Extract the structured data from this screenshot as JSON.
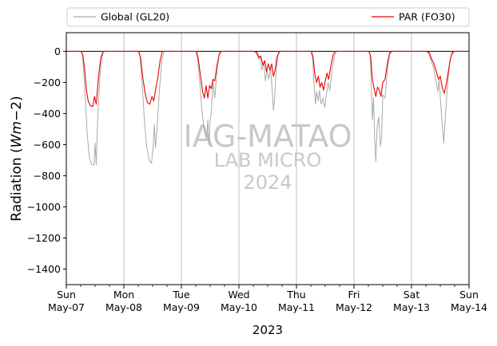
{
  "chart_data": {
    "type": "line",
    "ylabel": "Radiation ($Wm{-}2$)",
    "ylabel_parts": {
      "main": "Radiation (",
      "italic": "Wm",
      "tail": "−2)"
    },
    "xlabel": "2023",
    "ylim": [
      -1500,
      120
    ],
    "xlim": [
      0,
      7
    ],
    "grid": "vertical",
    "legend_placement": "top",
    "yticks": [
      0,
      -200,
      -400,
      -600,
      -800,
      -1000,
      -1200,
      -1400
    ],
    "ytick_labels": [
      "0",
      "−200",
      "−400",
      "−600",
      "−800",
      "−1000",
      "−1200",
      "−1400"
    ],
    "xticks": [
      {
        "day": "Sun",
        "date": "May-07"
      },
      {
        "day": "Mon",
        "date": "May-08"
      },
      {
        "day": "Tue",
        "date": "May-09"
      },
      {
        "day": "Wed",
        "date": "May-10"
      },
      {
        "day": "Thu",
        "date": "May-11"
      },
      {
        "day": "Fri",
        "date": "May-12"
      },
      {
        "day": "Sat",
        "date": "May-13"
      },
      {
        "day": "Sun",
        "date": "May-14"
      }
    ],
    "watermark": {
      "line1": "IAG-MATAO",
      "line2": "LAB MICRO",
      "line3": "2024"
    },
    "series": [
      {
        "name": "Global (GL20)",
        "color": "#aaaaaa",
        "points": [
          [
            0,
            0
          ],
          [
            0.25,
            0
          ],
          [
            0.28,
            -20
          ],
          [
            0.3,
            -120
          ],
          [
            0.33,
            -300
          ],
          [
            0.36,
            -520
          ],
          [
            0.4,
            -680
          ],
          [
            0.44,
            -730
          ],
          [
            0.48,
            -730
          ],
          [
            0.5,
            -590
          ],
          [
            0.52,
            -730
          ],
          [
            0.54,
            -480
          ],
          [
            0.57,
            -250
          ],
          [
            0.6,
            -90
          ],
          [
            0.64,
            -5
          ],
          [
            0.7,
            0
          ],
          [
            1.25,
            0
          ],
          [
            1.28,
            -30
          ],
          [
            1.32,
            -220
          ],
          [
            1.36,
            -460
          ],
          [
            1.4,
            -620
          ],
          [
            1.44,
            -700
          ],
          [
            1.48,
            -720
          ],
          [
            1.51,
            -610
          ],
          [
            1.53,
            -470
          ],
          [
            1.55,
            -620
          ],
          [
            1.58,
            -480
          ],
          [
            1.62,
            -240
          ],
          [
            1.66,
            -60
          ],
          [
            1.7,
            0
          ],
          [
            2.25,
            0
          ],
          [
            2.28,
            -40
          ],
          [
            2.32,
            -200
          ],
          [
            2.36,
            -390
          ],
          [
            2.4,
            -520
          ],
          [
            2.44,
            -560
          ],
          [
            2.46,
            -440
          ],
          [
            2.48,
            -600
          ],
          [
            2.5,
            -440
          ],
          [
            2.52,
            -390
          ],
          [
            2.55,
            -200
          ],
          [
            2.58,
            -300
          ],
          [
            2.62,
            -120
          ],
          [
            2.66,
            -20
          ],
          [
            2.7,
            0
          ],
          [
            3.25,
            0
          ],
          [
            3.3,
            -10
          ],
          [
            3.34,
            -50
          ],
          [
            3.37,
            -40
          ],
          [
            3.4,
            -120
          ],
          [
            3.43,
            -70
          ],
          [
            3.46,
            -190
          ],
          [
            3.49,
            -120
          ],
          [
            3.52,
            -180
          ],
          [
            3.55,
            -100
          ],
          [
            3.58,
            -260
          ],
          [
            3.6,
            -380
          ],
          [
            3.62,
            -300
          ],
          [
            3.65,
            -120
          ],
          [
            3.68,
            -20
          ],
          [
            3.72,
            0
          ],
          [
            4.25,
            0
          ],
          [
            4.28,
            -40
          ],
          [
            4.3,
            -180
          ],
          [
            4.33,
            -340
          ],
          [
            4.35,
            -260
          ],
          [
            4.38,
            -320
          ],
          [
            4.4,
            -250
          ],
          [
            4.43,
            -340
          ],
          [
            4.46,
            -300
          ],
          [
            4.49,
            -360
          ],
          [
            4.52,
            -280
          ],
          [
            4.55,
            -200
          ],
          [
            4.58,
            -250
          ],
          [
            4.62,
            -120
          ],
          [
            4.66,
            -30
          ],
          [
            4.7,
            0
          ],
          [
            5.25,
            0
          ],
          [
            5.28,
            -20
          ],
          [
            5.3,
            -200
          ],
          [
            5.32,
            -440
          ],
          [
            5.34,
            -300
          ],
          [
            5.36,
            -560
          ],
          [
            5.38,
            -710
          ],
          [
            5.4,
            -500
          ],
          [
            5.43,
            -420
          ],
          [
            5.46,
            -610
          ],
          [
            5.48,
            -560
          ],
          [
            5.5,
            -280
          ],
          [
            5.54,
            -300
          ],
          [
            5.58,
            -120
          ],
          [
            5.62,
            -20
          ],
          [
            5.66,
            0
          ],
          [
            6.25,
            0
          ],
          [
            6.3,
            -10
          ],
          [
            6.34,
            -60
          ],
          [
            6.38,
            -100
          ],
          [
            6.42,
            -180
          ],
          [
            6.46,
            -260
          ],
          [
            6.48,
            -180
          ],
          [
            6.52,
            -400
          ],
          [
            6.56,
            -590
          ],
          [
            6.58,
            -470
          ],
          [
            6.62,
            -250
          ],
          [
            6.66,
            -80
          ],
          [
            6.7,
            -10
          ],
          [
            6.75,
            0
          ],
          [
            7,
            0
          ]
        ]
      },
      {
        "name": "PAR (FO30)",
        "color": "#ee0000",
        "points": [
          [
            0,
            0
          ],
          [
            0.26,
            0
          ],
          [
            0.29,
            -30
          ],
          [
            0.32,
            -120
          ],
          [
            0.35,
            -250
          ],
          [
            0.38,
            -320
          ],
          [
            0.42,
            -350
          ],
          [
            0.46,
            -355
          ],
          [
            0.49,
            -290
          ],
          [
            0.52,
            -340
          ],
          [
            0.54,
            -250
          ],
          [
            0.57,
            -130
          ],
          [
            0.6,
            -40
          ],
          [
            0.64,
            0
          ],
          [
            0.7,
            0
          ],
          [
            1.26,
            0
          ],
          [
            1.29,
            -40
          ],
          [
            1.33,
            -170
          ],
          [
            1.37,
            -270
          ],
          [
            1.41,
            -330
          ],
          [
            1.45,
            -340
          ],
          [
            1.49,
            -290
          ],
          [
            1.52,
            -320
          ],
          [
            1.55,
            -250
          ],
          [
            1.59,
            -170
          ],
          [
            1.63,
            -60
          ],
          [
            1.67,
            0
          ],
          [
            2.26,
            0
          ],
          [
            2.29,
            -40
          ],
          [
            2.33,
            -150
          ],
          [
            2.37,
            -260
          ],
          [
            2.4,
            -300
          ],
          [
            2.43,
            -220
          ],
          [
            2.46,
            -300
          ],
          [
            2.49,
            -220
          ],
          [
            2.52,
            -240
          ],
          [
            2.55,
            -180
          ],
          [
            2.58,
            -190
          ],
          [
            2.62,
            -90
          ],
          [
            2.66,
            -15
          ],
          [
            2.7,
            0
          ],
          [
            3.26,
            0
          ],
          [
            3.31,
            -5
          ],
          [
            3.35,
            -40
          ],
          [
            3.38,
            -30
          ],
          [
            3.42,
            -90
          ],
          [
            3.45,
            -60
          ],
          [
            3.48,
            -130
          ],
          [
            3.51,
            -80
          ],
          [
            3.54,
            -120
          ],
          [
            3.57,
            -80
          ],
          [
            3.6,
            -160
          ],
          [
            3.63,
            -120
          ],
          [
            3.66,
            -40
          ],
          [
            3.7,
            0
          ],
          [
            4.26,
            0
          ],
          [
            4.29,
            -40
          ],
          [
            4.32,
            -150
          ],
          [
            4.35,
            -200
          ],
          [
            4.38,
            -160
          ],
          [
            4.41,
            -230
          ],
          [
            4.44,
            -200
          ],
          [
            4.47,
            -250
          ],
          [
            4.5,
            -190
          ],
          [
            4.53,
            -140
          ],
          [
            4.56,
            -180
          ],
          [
            4.6,
            -90
          ],
          [
            4.64,
            -20
          ],
          [
            4.68,
            0
          ],
          [
            5.26,
            0
          ],
          [
            5.29,
            -30
          ],
          [
            5.32,
            -180
          ],
          [
            5.35,
            -240
          ],
          [
            5.38,
            -290
          ],
          [
            5.41,
            -230
          ],
          [
            5.44,
            -250
          ],
          [
            5.47,
            -290
          ],
          [
            5.5,
            -200
          ],
          [
            5.54,
            -180
          ],
          [
            5.58,
            -80
          ],
          [
            5.62,
            -10
          ],
          [
            5.66,
            0
          ],
          [
            6.26,
            0
          ],
          [
            6.31,
            -10
          ],
          [
            6.35,
            -50
          ],
          [
            6.39,
            -80
          ],
          [
            6.43,
            -130
          ],
          [
            6.47,
            -180
          ],
          [
            6.5,
            -160
          ],
          [
            6.54,
            -240
          ],
          [
            6.57,
            -270
          ],
          [
            6.6,
            -220
          ],
          [
            6.64,
            -130
          ],
          [
            6.68,
            -40
          ],
          [
            6.72,
            -5
          ],
          [
            6.76,
            0
          ],
          [
            7,
            0
          ]
        ]
      }
    ]
  }
}
